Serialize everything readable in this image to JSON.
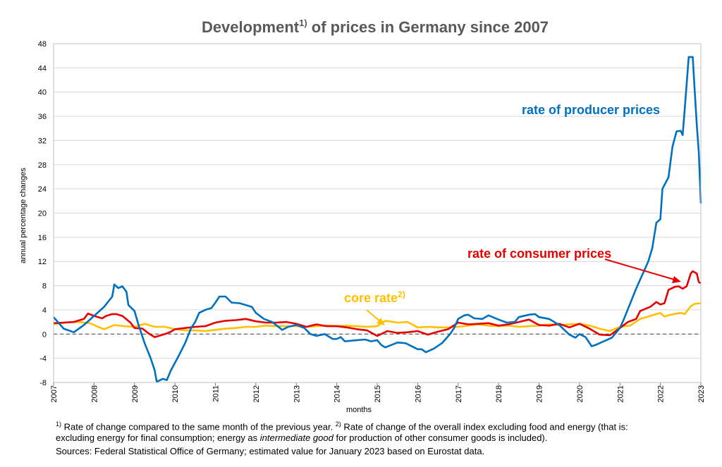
{
  "chart_data": {
    "type": "line",
    "title": "Development",
    "title_sup": "1)",
    "title_rest": " of prices in Germany since 2007",
    "xlabel": "months",
    "ylabel": "annual percentage changes",
    "xlim": [
      2007,
      2023
    ],
    "ylim": [
      -8,
      48
    ],
    "yticks": [
      -8,
      -4,
      0,
      4,
      8,
      12,
      16,
      20,
      24,
      28,
      32,
      36,
      40,
      44,
      48
    ],
    "xticks": [
      "2007",
      "2008",
      "2009",
      "2010",
      "2011",
      "2012",
      "2013",
      "2014",
      "2015",
      "2016",
      "2017",
      "2018",
      "2019",
      "2020",
      "2021",
      "2022",
      "2023"
    ],
    "grid": "horizontal",
    "reference_line": 0,
    "series": [
      {
        "name": "rate of producer prices",
        "color": "#0070C0",
        "points": [
          [
            2007.0,
            2.8
          ],
          [
            2007.25,
            0.9
          ],
          [
            2007.5,
            0.3
          ],
          [
            2007.75,
            1.5
          ],
          [
            2008.0,
            3.0
          ],
          [
            2008.25,
            4.5
          ],
          [
            2008.45,
            6.2
          ],
          [
            2008.5,
            8.2
          ],
          [
            2008.6,
            7.6
          ],
          [
            2008.7,
            7.9
          ],
          [
            2008.8,
            7.0
          ],
          [
            2008.85,
            4.8
          ],
          [
            2009.0,
            3.8
          ],
          [
            2009.1,
            1.5
          ],
          [
            2009.25,
            -1.5
          ],
          [
            2009.4,
            -4.0
          ],
          [
            2009.5,
            -6.0
          ],
          [
            2009.55,
            -7.9
          ],
          [
            2009.7,
            -7.4
          ],
          [
            2009.8,
            -7.6
          ],
          [
            2009.9,
            -6.0
          ],
          [
            2010.1,
            -3.5
          ],
          [
            2010.25,
            -1.5
          ],
          [
            2010.4,
            1.0
          ],
          [
            2010.5,
            2.0
          ],
          [
            2010.6,
            3.5
          ],
          [
            2010.75,
            4.0
          ],
          [
            2010.9,
            4.3
          ],
          [
            2011.0,
            5.2
          ],
          [
            2011.1,
            6.2
          ],
          [
            2011.25,
            6.2
          ],
          [
            2011.4,
            5.2
          ],
          [
            2011.6,
            5.1
          ],
          [
            2011.9,
            4.5
          ],
          [
            2012.0,
            3.5
          ],
          [
            2012.2,
            2.5
          ],
          [
            2012.4,
            2.0
          ],
          [
            2012.5,
            1.5
          ],
          [
            2012.65,
            0.7
          ],
          [
            2012.8,
            1.2
          ],
          [
            2013.0,
            1.5
          ],
          [
            2013.2,
            1.0
          ],
          [
            2013.35,
            0.0
          ],
          [
            2013.5,
            -0.3
          ],
          [
            2013.7,
            0.0
          ],
          [
            2013.9,
            -0.8
          ],
          [
            2014.0,
            -0.8
          ],
          [
            2014.1,
            -0.5
          ],
          [
            2014.2,
            -1.2
          ],
          [
            2014.5,
            -1.0
          ],
          [
            2014.7,
            -0.9
          ],
          [
            2014.85,
            -1.2
          ],
          [
            2015.0,
            -1.0
          ],
          [
            2015.1,
            -1.8
          ],
          [
            2015.2,
            -2.2
          ],
          [
            2015.5,
            -1.4
          ],
          [
            2015.7,
            -1.5
          ],
          [
            2016.0,
            -2.5
          ],
          [
            2016.1,
            -2.5
          ],
          [
            2016.2,
            -3.0
          ],
          [
            2016.4,
            -2.4
          ],
          [
            2016.6,
            -1.5
          ],
          [
            2016.8,
            0.0
          ],
          [
            2016.9,
            1.0
          ],
          [
            2017.0,
            2.5
          ],
          [
            2017.15,
            3.1
          ],
          [
            2017.25,
            3.2
          ],
          [
            2017.4,
            2.6
          ],
          [
            2017.6,
            2.5
          ],
          [
            2017.75,
            3.1
          ],
          [
            2018.0,
            2.4
          ],
          [
            2018.2,
            1.9
          ],
          [
            2018.4,
            2.0
          ],
          [
            2018.5,
            2.8
          ],
          [
            2018.75,
            3.2
          ],
          [
            2018.9,
            3.3
          ],
          [
            2019.0,
            2.8
          ],
          [
            2019.25,
            2.5
          ],
          [
            2019.5,
            1.5
          ],
          [
            2019.75,
            -0.1
          ],
          [
            2019.9,
            -0.6
          ],
          [
            2020.0,
            0.0
          ],
          [
            2020.15,
            -0.5
          ],
          [
            2020.3,
            -2.0
          ],
          [
            2020.4,
            -1.8
          ],
          [
            2020.6,
            -1.2
          ],
          [
            2020.8,
            -0.6
          ],
          [
            2021.0,
            1.0
          ],
          [
            2021.1,
            2.5
          ],
          [
            2021.25,
            5.0
          ],
          [
            2021.4,
            7.5
          ],
          [
            2021.5,
            9.0
          ],
          [
            2021.6,
            10.5
          ],
          [
            2021.7,
            12.0
          ],
          [
            2021.8,
            14.2
          ],
          [
            2021.9,
            18.4
          ],
          [
            2022.0,
            19.0
          ],
          [
            2022.05,
            24.0
          ],
          [
            2022.2,
            25.9
          ],
          [
            2022.3,
            31.0
          ],
          [
            2022.4,
            33.5
          ],
          [
            2022.5,
            33.6
          ],
          [
            2022.55,
            32.9
          ],
          [
            2022.6,
            37.0
          ],
          [
            2022.7,
            45.8
          ],
          [
            2022.75,
            45.8
          ],
          [
            2022.8,
            45.8
          ],
          [
            2022.85,
            40.0
          ],
          [
            2022.9,
            34.5
          ],
          [
            2022.95,
            30.0
          ],
          [
            2023.0,
            21.6
          ]
        ]
      },
      {
        "name": "rate of consumer prices",
        "color": "#E60000",
        "points": [
          [
            2007.0,
            1.8
          ],
          [
            2007.25,
            1.9
          ],
          [
            2007.5,
            2.0
          ],
          [
            2007.75,
            2.5
          ],
          [
            2007.85,
            3.4
          ],
          [
            2008.0,
            3.0
          ],
          [
            2008.1,
            2.8
          ],
          [
            2008.2,
            2.6
          ],
          [
            2008.3,
            3.0
          ],
          [
            2008.45,
            3.3
          ],
          [
            2008.55,
            3.3
          ],
          [
            2008.7,
            3.0
          ],
          [
            2008.9,
            1.9
          ],
          [
            2009.0,
            1.0
          ],
          [
            2009.2,
            0.9
          ],
          [
            2009.35,
            0.1
          ],
          [
            2009.5,
            -0.5
          ],
          [
            2009.6,
            -0.3
          ],
          [
            2009.75,
            0.0
          ],
          [
            2009.9,
            0.4
          ],
          [
            2010.0,
            0.8
          ],
          [
            2010.25,
            1.0
          ],
          [
            2010.5,
            1.2
          ],
          [
            2010.75,
            1.3
          ],
          [
            2011.0,
            1.9
          ],
          [
            2011.25,
            2.2
          ],
          [
            2011.5,
            2.3
          ],
          [
            2011.75,
            2.5
          ],
          [
            2012.0,
            2.1
          ],
          [
            2012.25,
            1.9
          ],
          [
            2012.5,
            1.9
          ],
          [
            2012.75,
            2.0
          ],
          [
            2013.0,
            1.7
          ],
          [
            2013.25,
            1.2
          ],
          [
            2013.5,
            1.6
          ],
          [
            2013.75,
            1.3
          ],
          [
            2014.0,
            1.3
          ],
          [
            2014.25,
            1.1
          ],
          [
            2014.5,
            0.8
          ],
          [
            2014.75,
            0.6
          ],
          [
            2015.0,
            -0.3
          ],
          [
            2015.25,
            0.5
          ],
          [
            2015.5,
            0.2
          ],
          [
            2015.75,
            0.3
          ],
          [
            2016.0,
            0.5
          ],
          [
            2016.25,
            -0.1
          ],
          [
            2016.5,
            0.4
          ],
          [
            2016.75,
            0.8
          ],
          [
            2017.0,
            1.9
          ],
          [
            2017.25,
            1.6
          ],
          [
            2017.5,
            1.7
          ],
          [
            2017.75,
            1.8
          ],
          [
            2018.0,
            1.4
          ],
          [
            2018.25,
            1.6
          ],
          [
            2018.5,
            2.0
          ],
          [
            2018.75,
            2.4
          ],
          [
            2019.0,
            1.5
          ],
          [
            2019.25,
            1.4
          ],
          [
            2019.5,
            1.7
          ],
          [
            2019.75,
            1.1
          ],
          [
            2020.0,
            1.7
          ],
          [
            2020.25,
            0.9
          ],
          [
            2020.5,
            -0.1
          ],
          [
            2020.75,
            -0.2
          ],
          [
            2021.0,
            1.0
          ],
          [
            2021.2,
            2.0
          ],
          [
            2021.4,
            2.5
          ],
          [
            2021.5,
            3.8
          ],
          [
            2021.75,
            4.5
          ],
          [
            2021.9,
            5.3
          ],
          [
            2022.0,
            4.9
          ],
          [
            2022.1,
            5.1
          ],
          [
            2022.2,
            7.3
          ],
          [
            2022.35,
            7.8
          ],
          [
            2022.45,
            7.9
          ],
          [
            2022.55,
            7.5
          ],
          [
            2022.65,
            7.9
          ],
          [
            2022.75,
            10.0
          ],
          [
            2022.8,
            10.4
          ],
          [
            2022.9,
            10.0
          ],
          [
            2022.95,
            8.6
          ],
          [
            2023.0,
            8.4
          ]
        ]
      },
      {
        "name": "core rate",
        "name_sup": "2)",
        "color": "#FFC000",
        "points": [
          [
            2007.0,
            1.6
          ],
          [
            2007.3,
            1.9
          ],
          [
            2007.6,
            2.0
          ],
          [
            2007.9,
            1.8
          ],
          [
            2008.1,
            1.2
          ],
          [
            2008.25,
            0.8
          ],
          [
            2008.5,
            1.5
          ],
          [
            2008.75,
            1.3
          ],
          [
            2009.0,
            1.2
          ],
          [
            2009.25,
            1.7
          ],
          [
            2009.5,
            1.2
          ],
          [
            2009.75,
            1.2
          ],
          [
            2010.0,
            0.8
          ],
          [
            2010.25,
            0.6
          ],
          [
            2010.5,
            0.6
          ],
          [
            2010.75,
            0.5
          ],
          [
            2011.0,
            0.7
          ],
          [
            2011.25,
            0.9
          ],
          [
            2011.5,
            1.0
          ],
          [
            2011.75,
            1.2
          ],
          [
            2012.0,
            1.2
          ],
          [
            2012.25,
            1.4
          ],
          [
            2012.5,
            1.3
          ],
          [
            2012.75,
            1.3
          ],
          [
            2013.0,
            1.3
          ],
          [
            2013.25,
            1.2
          ],
          [
            2013.5,
            1.3
          ],
          [
            2013.75,
            1.4
          ],
          [
            2014.0,
            1.3
          ],
          [
            2014.25,
            1.4
          ],
          [
            2014.5,
            1.3
          ],
          [
            2014.75,
            1.2
          ],
          [
            2015.0,
            1.3
          ],
          [
            2015.2,
            2.2
          ],
          [
            2015.5,
            1.9
          ],
          [
            2015.75,
            2.0
          ],
          [
            2016.0,
            1.1
          ],
          [
            2016.25,
            1.2
          ],
          [
            2016.5,
            1.1
          ],
          [
            2016.75,
            1.1
          ],
          [
            2017.0,
            1.2
          ],
          [
            2017.25,
            1.4
          ],
          [
            2017.5,
            1.6
          ],
          [
            2017.75,
            1.4
          ],
          [
            2018.0,
            1.3
          ],
          [
            2018.25,
            1.4
          ],
          [
            2018.5,
            1.2
          ],
          [
            2018.75,
            1.3
          ],
          [
            2019.0,
            1.4
          ],
          [
            2019.25,
            1.6
          ],
          [
            2019.5,
            1.5
          ],
          [
            2019.75,
            1.6
          ],
          [
            2020.0,
            1.7
          ],
          [
            2020.25,
            1.4
          ],
          [
            2020.5,
            0.9
          ],
          [
            2020.75,
            0.5
          ],
          [
            2021.0,
            1.2
          ],
          [
            2021.25,
            1.4
          ],
          [
            2021.5,
            2.5
          ],
          [
            2021.75,
            3.0
          ],
          [
            2022.0,
            3.5
          ],
          [
            2022.1,
            2.9
          ],
          [
            2022.25,
            3.2
          ],
          [
            2022.5,
            3.5
          ],
          [
            2022.6,
            3.3
          ],
          [
            2022.75,
            4.6
          ],
          [
            2022.85,
            5.0
          ],
          [
            2023.0,
            5.1
          ]
        ]
      }
    ],
    "annotations": [
      {
        "text": "rate of producer prices",
        "color": "#0070C0"
      },
      {
        "text": "rate of consumer prices",
        "color": "#E60000"
      },
      {
        "text": "core rate",
        "sup": "2)",
        "color": "#FFC000"
      }
    ]
  },
  "footnotes": {
    "line1_sup": "1)",
    "line1": " Rate of change compared to the same month of the previous year. ",
    "line1_sup2": "2)",
    "line1b": " Rate of change of the overall index excluding food and energy (that is:",
    "line2a": "excluding energy for final consumption; energy as ",
    "line2_italic": "intermediate good",
    "line2b": " for production of other consumer goods is included).",
    "line3": "Sources: Federal Statistical Office of Germany; estimated value for January 2023 based on Eurostat data."
  }
}
